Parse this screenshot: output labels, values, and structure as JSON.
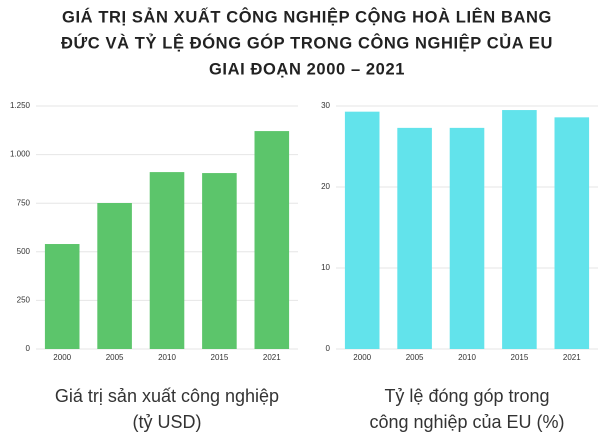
{
  "title": [
    "GIÁ TRỊ SẢN XUẤT CÔNG NGHIỆP CỘNG HOÀ LIÊN BANG",
    "ĐỨC VÀ TỶ LỆ ĐÓNG GÓP TRONG CÔNG NGHIỆP CỦA EU",
    "GIAI ĐOẠN 2000 – 2021"
  ],
  "chart_data": [
    {
      "type": "bar",
      "x_label": [
        "Giá trị sản xuất công nghiệp",
        "(tỷ USD)"
      ],
      "categories": [
        "2000",
        "2005",
        "2010",
        "2015",
        "2021"
      ],
      "values": [
        540,
        751,
        910,
        905,
        1121
      ],
      "color": "#5cc56b",
      "ylim": [
        0,
        1250
      ],
      "yticks": [
        0,
        250,
        500,
        750,
        {
          "value": 1000,
          "label": "1.000"
        },
        {
          "value": 1250,
          "label": "1.250"
        }
      ],
      "grid": true
    },
    {
      "type": "bar",
      "x_label": [
        "Tỷ lệ đóng góp trong",
        "công nghiệp của EU (%)"
      ],
      "categories": [
        "2000",
        "2005",
        "2010",
        "2015",
        "2021"
      ],
      "values": [
        29.3,
        27.3,
        27.3,
        29.5,
        28.6
      ],
      "color": "#62e3eb",
      "ylim": [
        0,
        30
      ],
      "yticks": [
        0,
        10,
        20,
        30
      ],
      "grid": true
    }
  ]
}
